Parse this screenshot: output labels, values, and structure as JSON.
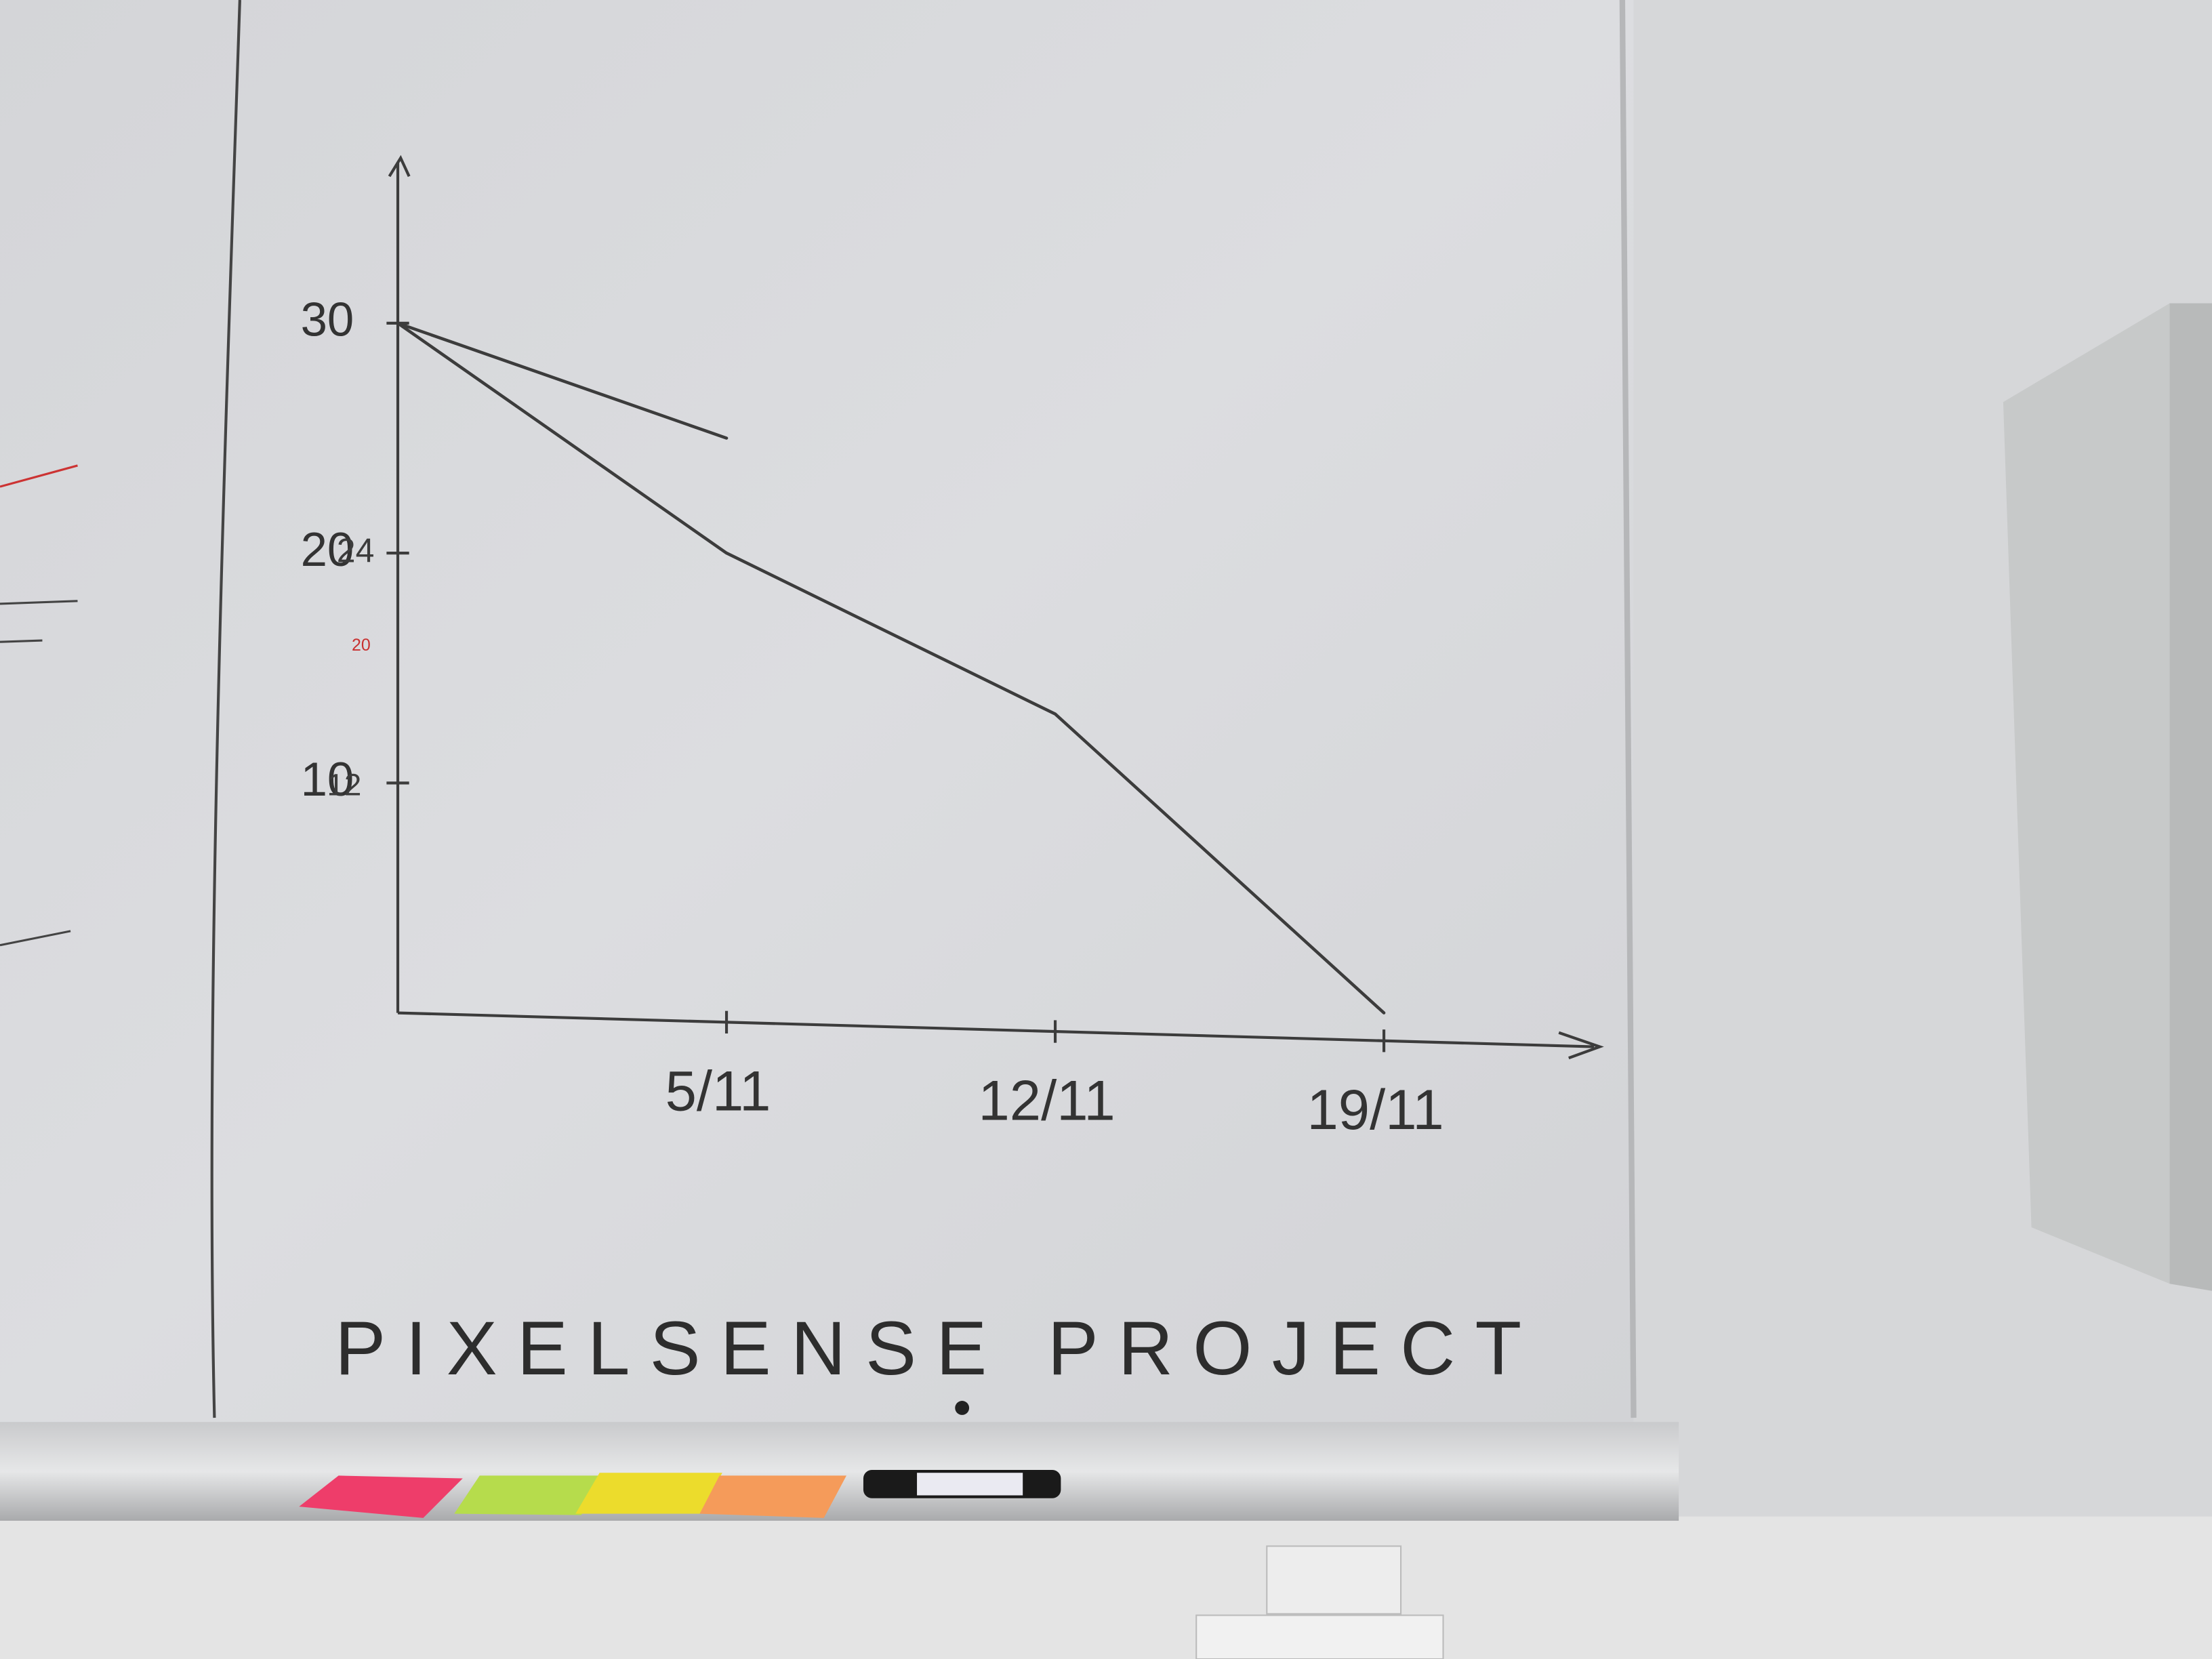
{
  "chart_data": {
    "type": "line",
    "title": "PIXELSENSE PROJECT",
    "categories": [
      null,
      "5/11",
      "12/11",
      "19/11"
    ],
    "series": [
      {
        "color": "#3c3c3c",
        "values": [
          30,
          25,
          null,
          null
        ]
      },
      {
        "color": "#3c3c3c",
        "values": [
          30,
          20,
          13,
          0
        ]
      }
    ],
    "ylim": [
      0,
      37
    ],
    "yticks": [
      10,
      20,
      30
    ],
    "annotations": [
      "24",
      "12",
      "20"
    ],
    "grid": false
  }
}
